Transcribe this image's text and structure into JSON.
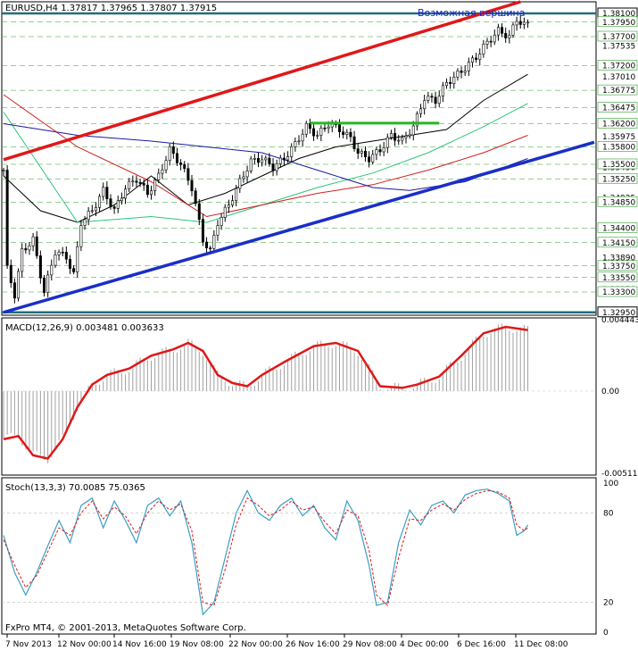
{
  "chart_data": [
    {
      "type": "candlestick",
      "title": "EURUSD,H4  1.37817 1.37965 1.37807 1.37915",
      "annotation": "Возможная вершина",
      "price_scale": {
        "min": 1.329,
        "max": 1.383,
        "tick_labels": [
          "1.37535",
          "1.37010",
          "1.36485",
          "1.35975",
          "1.35450",
          "1.34925",
          "1.34400",
          "1.33890",
          "1.33350",
          "1.32950"
        ],
        "level_labels": [
          "1.38100",
          "1.37950",
          "1.37700",
          "1.37200",
          "1.36775",
          "1.36475",
          "1.36200",
          "1.35800",
          "1.35500",
          "1.35250",
          "1.34850",
          "1.34400",
          "1.34150",
          "1.33750",
          "1.33550",
          "1.33300",
          "1.32950"
        ],
        "level_values": [
          1.381,
          1.3795,
          1.377,
          1.372,
          1.36775,
          1.36475,
          1.362,
          1.358,
          1.355,
          1.3525,
          1.3485,
          1.344,
          1.3415,
          1.3375,
          1.3355,
          1.333,
          1.3295
        ]
      },
      "horizontal_lines": [
        1.381,
        1.3295
      ],
      "channel": {
        "upper": [
          {
            "bar": 0,
            "price": 1.3558
          },
          {
            "bar": 140,
            "price": 1.383
          }
        ],
        "lower": [
          {
            "bar": 0,
            "price": 1.3295
          },
          {
            "bar": 160,
            "price": 1.3588
          }
        ]
      },
      "support_segment": {
        "from_bar": 83,
        "to_bar": 118,
        "price": 1.3621
      },
      "close_path": [
        [
          0,
          1.354
        ],
        [
          1,
          1.337
        ],
        [
          3,
          1.3325
        ],
        [
          5,
          1.34
        ],
        [
          8,
          1.342
        ],
        [
          11,
          1.333
        ],
        [
          14,
          1.34
        ],
        [
          17,
          1.339
        ],
        [
          19,
          1.336
        ],
        [
          21,
          1.345
        ],
        [
          24,
          1.347
        ],
        [
          27,
          1.3505
        ],
        [
          30,
          1.347
        ],
        [
          33,
          1.351
        ],
        [
          36,
          1.3525
        ],
        [
          39,
          1.35
        ],
        [
          42,
          1.353
        ],
        [
          45,
          1.3575
        ],
        [
          48,
          1.355
        ],
        [
          51,
          1.351
        ],
        [
          54,
          1.342
        ],
        [
          56,
          1.34
        ],
        [
          58,
          1.345
        ],
        [
          61,
          1.348
        ],
        [
          64,
          1.352
        ],
        [
          67,
          1.3555
        ],
        [
          70,
          1.356
        ],
        [
          73,
          1.3545
        ],
        [
          76,
          1.356
        ],
        [
          79,
          1.3585
        ],
        [
          82,
          1.3615
        ],
        [
          85,
          1.36
        ],
        [
          88,
          1.362
        ],
        [
          91,
          1.361
        ],
        [
          94,
          1.3595
        ],
        [
          96,
          1.357
        ],
        [
          99,
          1.356
        ],
        [
          102,
          1.3575
        ],
        [
          105,
          1.36
        ],
        [
          108,
          1.359
        ],
        [
          111,
          1.3615
        ],
        [
          114,
          1.3665
        ],
        [
          117,
          1.366
        ],
        [
          120,
          1.369
        ],
        [
          124,
          1.371
        ],
        [
          128,
          1.3735
        ],
        [
          131,
          1.376
        ],
        [
          134,
          1.378
        ],
        [
          137,
          1.377
        ],
        [
          139,
          1.38
        ],
        [
          141,
          1.379
        ],
        [
          142,
          1.3792
        ]
      ],
      "moving_averages": [
        {
          "name": "",
          "color": "#000000",
          "points": [
            [
              0,
              1.353
            ],
            [
              10,
              1.347
            ],
            [
              20,
              1.345
            ],
            [
              30,
              1.348
            ],
            [
              40,
              1.353
            ],
            [
              50,
              1.348
            ],
            [
              60,
              1.35
            ],
            [
              70,
              1.353
            ],
            [
              80,
              1.356
            ],
            [
              90,
              1.358
            ],
            [
              100,
              1.359
            ],
            [
              110,
              1.36
            ],
            [
              120,
              1.361
            ],
            [
              130,
              1.366
            ],
            [
              142,
              1.3705
            ]
          ]
        },
        {
          "name": "",
          "color": "#2ec47a",
          "points": [
            [
              0,
              1.364
            ],
            [
              20,
              1.345
            ],
            [
              40,
              1.346
            ],
            [
              55,
              1.345
            ],
            [
              70,
              1.348
            ],
            [
              85,
              1.351
            ],
            [
              100,
              1.3535
            ],
            [
              115,
              1.357
            ],
            [
              130,
              1.3615
            ],
            [
              142,
              1.3655
            ]
          ]
        },
        {
          "name": "",
          "color": "#d02020",
          "points": [
            [
              0,
              1.367
            ],
            [
              20,
              1.358
            ],
            [
              40,
              1.352
            ],
            [
              55,
              1.346
            ],
            [
              70,
              1.348
            ],
            [
              85,
              1.35
            ],
            [
              100,
              1.3515
            ],
            [
              115,
              1.354
            ],
            [
              130,
              1.357
            ],
            [
              142,
              1.36
            ]
          ]
        },
        {
          "name": "",
          "color": "#1a1a9e",
          "points": [
            [
              0,
              1.362
            ],
            [
              20,
              1.36
            ],
            [
              40,
              1.359
            ],
            [
              55,
              1.358
            ],
            [
              70,
              1.357
            ],
            [
              85,
              1.354
            ],
            [
              100,
              1.351
            ],
            [
              110,
              1.3505
            ],
            [
              125,
              1.352
            ],
            [
              142,
              1.356
            ]
          ]
        }
      ]
    },
    {
      "type": "histogram",
      "title": "MACD(12,26,9) 0.003481 0.003633",
      "tick_labels": [
        "0.004443",
        "0.00",
        "-0.005119"
      ],
      "ylim": [
        -0.005119,
        0.004443
      ],
      "signal": [
        [
          0,
          -0.003
        ],
        [
          4,
          -0.0028
        ],
        [
          8,
          -0.004
        ],
        [
          12,
          -0.0042
        ],
        [
          16,
          -0.003
        ],
        [
          20,
          -0.001
        ],
        [
          24,
          0.0004
        ],
        [
          28,
          0.001
        ],
        [
          34,
          0.0014
        ],
        [
          40,
          0.0022
        ],
        [
          46,
          0.0026
        ],
        [
          50,
          0.003
        ],
        [
          54,
          0.0025
        ],
        [
          58,
          0.001
        ],
        [
          62,
          0.0005
        ],
        [
          66,
          0.0003
        ],
        [
          70,
          0.001
        ],
        [
          76,
          0.0018
        ],
        [
          84,
          0.0028
        ],
        [
          90,
          0.003
        ],
        [
          96,
          0.0025
        ],
        [
          102,
          0.0003
        ],
        [
          108,
          0.0002
        ],
        [
          112,
          0.0004
        ],
        [
          118,
          0.0009
        ],
        [
          124,
          0.0022
        ],
        [
          130,
          0.0036
        ],
        [
          136,
          0.004
        ],
        [
          142,
          0.0038
        ]
      ]
    },
    {
      "type": "line",
      "title": "Stoch(13,3,3) 70.0085 75.0365",
      "tick_labels": [
        "100",
        "80",
        "20",
        "0"
      ],
      "ylim": [
        0,
        100
      ],
      "main": [
        [
          0,
          65
        ],
        [
          3,
          40
        ],
        [
          6,
          25
        ],
        [
          9,
          40
        ],
        [
          12,
          58
        ],
        [
          15,
          75
        ],
        [
          18,
          60
        ],
        [
          21,
          85
        ],
        [
          24,
          90
        ],
        [
          27,
          70
        ],
        [
          30,
          88
        ],
        [
          33,
          75
        ],
        [
          36,
          60
        ],
        [
          39,
          85
        ],
        [
          42,
          90
        ],
        [
          45,
          78
        ],
        [
          48,
          88
        ],
        [
          51,
          60
        ],
        [
          54,
          12
        ],
        [
          57,
          20
        ],
        [
          60,
          50
        ],
        [
          63,
          80
        ],
        [
          66,
          95
        ],
        [
          69,
          80
        ],
        [
          72,
          75
        ],
        [
          75,
          85
        ],
        [
          78,
          90
        ],
        [
          81,
          78
        ],
        [
          84,
          85
        ],
        [
          87,
          70
        ],
        [
          90,
          62
        ],
        [
          93,
          88
        ],
        [
          96,
          75
        ],
        [
          99,
          45
        ],
        [
          101,
          18
        ],
        [
          104,
          20
        ],
        [
          107,
          60
        ],
        [
          110,
          82
        ],
        [
          113,
          72
        ],
        [
          116,
          85
        ],
        [
          119,
          88
        ],
        [
          122,
          80
        ],
        [
          125,
          92
        ],
        [
          128,
          95
        ],
        [
          131,
          96
        ],
        [
          134,
          93
        ],
        [
          137,
          88
        ],
        [
          139,
          65
        ],
        [
          141,
          68
        ],
        [
          142,
          72
        ]
      ],
      "signal": [
        [
          0,
          62
        ],
        [
          3,
          45
        ],
        [
          6,
          30
        ],
        [
          9,
          38
        ],
        [
          12,
          54
        ],
        [
          15,
          70
        ],
        [
          18,
          65
        ],
        [
          21,
          80
        ],
        [
          24,
          88
        ],
        [
          27,
          76
        ],
        [
          30,
          84
        ],
        [
          33,
          78
        ],
        [
          36,
          66
        ],
        [
          39,
          80
        ],
        [
          42,
          88
        ],
        [
          45,
          82
        ],
        [
          48,
          86
        ],
        [
          51,
          68
        ],
        [
          54,
          20
        ],
        [
          57,
          18
        ],
        [
          60,
          42
        ],
        [
          63,
          72
        ],
        [
          66,
          90
        ],
        [
          69,
          85
        ],
        [
          72,
          78
        ],
        [
          75,
          82
        ],
        [
          78,
          88
        ],
        [
          81,
          82
        ],
        [
          84,
          84
        ],
        [
          87,
          74
        ],
        [
          90,
          66
        ],
        [
          93,
          82
        ],
        [
          96,
          78
        ],
        [
          99,
          55
        ],
        [
          101,
          25
        ],
        [
          104,
          18
        ],
        [
          107,
          50
        ],
        [
          110,
          76
        ],
        [
          113,
          75
        ],
        [
          116,
          82
        ],
        [
          119,
          86
        ],
        [
          122,
          82
        ],
        [
          125,
          89
        ],
        [
          128,
          93
        ],
        [
          131,
          95
        ],
        [
          134,
          94
        ],
        [
          137,
          90
        ],
        [
          139,
          72
        ],
        [
          141,
          68
        ],
        [
          142,
          70
        ]
      ]
    }
  ],
  "time_axis": [
    "7 Nov 2013",
    "12 Nov 00:00",
    "14 Nov 16:00",
    "19 Nov 08:00",
    "22 Nov 00:00",
    "26 Nov 16:00",
    "29 Nov 08:00",
    "4 Dec 00:00",
    "6 Dec 16:00",
    "11 Dec 08:00"
  ],
  "copyright": "FxPro MT4, © 2001-2013, MetaQuotes Software Corp."
}
